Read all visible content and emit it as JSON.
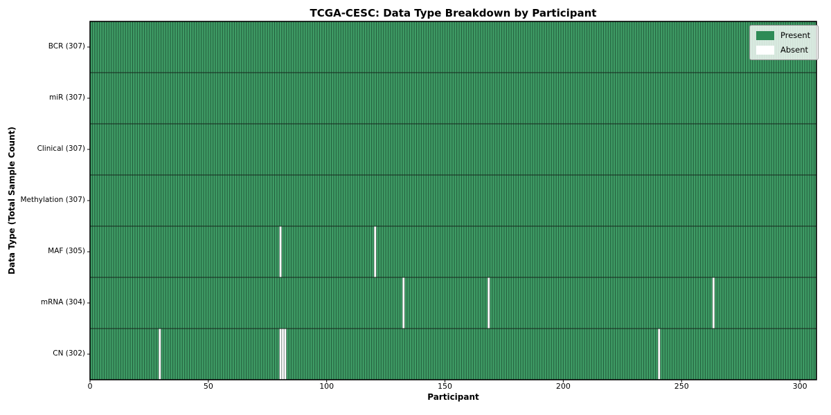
{
  "chart_data": {
    "type": "heatmap",
    "title": "TCGA-CESC: Data Type Breakdown by Participant",
    "xlabel": "Participant",
    "ylabel": "Data Type (Total Sample Count)",
    "n_participants": 307,
    "xlim": [
      0,
      307
    ],
    "x_ticks": [
      0,
      50,
      100,
      150,
      200,
      250,
      300
    ],
    "grid": false,
    "rows": [
      {
        "name": "BCR",
        "label": "BCR (307)",
        "total": 307,
        "absent": []
      },
      {
        "name": "miR",
        "label": "miR (307)",
        "total": 307,
        "absent": []
      },
      {
        "name": "Clinical",
        "label": "Clinical (307)",
        "total": 307,
        "absent": []
      },
      {
        "name": "Methylation",
        "label": "Methylation (307)",
        "total": 307,
        "absent": []
      },
      {
        "name": "MAF",
        "label": "MAF (305)",
        "total": 305,
        "absent": [
          80,
          120
        ]
      },
      {
        "name": "mRNA",
        "label": "mRNA (304)",
        "total": 304,
        "absent": [
          132,
          168,
          263
        ]
      },
      {
        "name": "CN",
        "label": "CN (302)",
        "total": 302,
        "absent": [
          29,
          80,
          81,
          82,
          240
        ]
      }
    ],
    "legend": {
      "position": "upper right",
      "items": [
        {
          "label": "Present",
          "color": "#2e8b57"
        },
        {
          "label": "Absent",
          "color": "#ffffff"
        }
      ]
    },
    "colors": {
      "present": "#3f9d66",
      "absent": "#ffffff",
      "cell_edge": "rgba(5, 25, 15, 0.5)",
      "row_divider": "#16261c",
      "frame": "#000000",
      "tick": "#000000"
    }
  }
}
